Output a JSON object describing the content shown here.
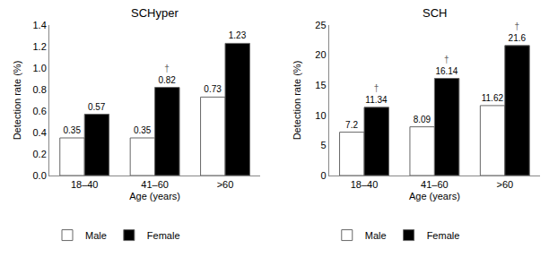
{
  "chart_data": [
    {
      "type": "bar",
      "title": "SCHyper",
      "categories": [
        "18–40",
        "41–60",
        ">60"
      ],
      "series": [
        {
          "name": "Male",
          "color": "white",
          "values": [
            0.35,
            0.35,
            0.73
          ]
        },
        {
          "name": "Female",
          "color": "black",
          "values": [
            0.57,
            0.82,
            1.23
          ]
        }
      ],
      "xlabel": "Age (years)",
      "ylabel": "Detection rate (%)",
      "ylim": [
        0,
        1.4
      ],
      "yticks": [
        {
          "value": 0,
          "label": "0.0"
        },
        0.2,
        0.4,
        0.6,
        0.8,
        {
          "value": 1,
          "label": "1.0"
        },
        1.2,
        1.4
      ],
      "annotations": [
        {
          "text": "†",
          "category": "41–60",
          "series": "Female"
        }
      ],
      "data_labels": true,
      "grid": false,
      "legend": "bottom"
    },
    {
      "type": "bar",
      "title": "SCH",
      "categories": [
        "18–40",
        "41–60",
        ">60"
      ],
      "series": [
        {
          "name": "Male",
          "color": "white",
          "values": [
            7.2,
            8.09,
            11.62
          ]
        },
        {
          "name": "Female",
          "color": "black",
          "values": [
            11.34,
            16.14,
            21.6
          ]
        }
      ],
      "xlabel": "Age (years)",
      "ylabel": "Detection rate (%)",
      "ylim": [
        0,
        25
      ],
      "yticks": [
        0,
        5,
        10,
        15,
        20,
        25
      ],
      "annotations": [
        {
          "text": "†",
          "category": "18–40",
          "series": "Female"
        },
        {
          "text": "†",
          "category": "41–60",
          "series": "Female"
        },
        {
          "text": "†",
          "category": ">60",
          "series": "Female"
        }
      ],
      "data_labels": true,
      "grid": false,
      "legend": "bottom"
    }
  ]
}
